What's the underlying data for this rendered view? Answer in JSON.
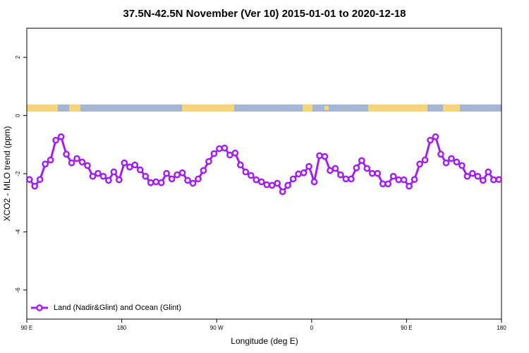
{
  "chart_data": {
    "type": "line",
    "title": "37.5N-42.5N November (Ver 10)   2015-01-01 to 2020-12-18",
    "x_label": "Longitude (deg E)",
    "y_label": "XCO2 - MLO trend (ppm)",
    "xlim": [
      90,
      540
    ],
    "xticks": [
      {
        "value": 90,
        "label": "90 E"
      },
      {
        "value": 180,
        "label": "180"
      },
      {
        "value": 270,
        "label": "90 W"
      },
      {
        "value": 360,
        "label": "0"
      },
      {
        "value": 450,
        "label": "90 E"
      },
      {
        "value": 540,
        "label": "180"
      }
    ],
    "ylim": [
      -7,
      3
    ],
    "yticks": [
      -6,
      -4,
      -2,
      0,
      2
    ],
    "legend": "bottom-left",
    "x": [
      92.5,
      97.5,
      102.5,
      107.5,
      112.5,
      117.5,
      122.5,
      127.5,
      132.5,
      137.5,
      142.5,
      147.5,
      152.5,
      157.5,
      162.5,
      167.5,
      172.5,
      177.5,
      182.5,
      187.5,
      192.5,
      197.5,
      202.5,
      207.5,
      212.5,
      217.5,
      222.5,
      227.5,
      232.5,
      237.5,
      242.5,
      247.5,
      252.5,
      257.5,
      262.5,
      267.5,
      272.5,
      277.5,
      282.5,
      287.5,
      292.5,
      297.5,
      302.5,
      307.5,
      312.5,
      317.5,
      322.5,
      327.5,
      332.5,
      337.5,
      342.5,
      347.5,
      352.5,
      357.5,
      362.5,
      367.5,
      372.5,
      377.5,
      382.5,
      387.5,
      392.5,
      397.5,
      402.5,
      407.5,
      412.5,
      417.5,
      422.5,
      427.5,
      432.5,
      437.5,
      442.5,
      447.5,
      452.5,
      457.5,
      462.5,
      467.5,
      472.5,
      477.5,
      482.5,
      487.5,
      492.5,
      497.5,
      502.5,
      507.5,
      512.5,
      517.5,
      522.5,
      527.5,
      532.5,
      537.5
    ],
    "series": [
      {
        "name": "Land (Nadir&Glint) and Ocean (Glint)",
        "color": "#a020f0",
        "values": [
          -2.2,
          -2.43,
          -2.2,
          -1.67,
          -1.53,
          -0.85,
          -0.73,
          -1.33,
          -1.63,
          -1.48,
          -1.6,
          -1.72,
          -2.09,
          -1.99,
          -2.09,
          -2.23,
          -1.94,
          -2.21,
          -1.63,
          -1.77,
          -1.7,
          -1.87,
          -2.09,
          -2.31,
          -2.28,
          -2.31,
          -1.99,
          -2.18,
          -2.04,
          -1.97,
          -2.23,
          -2.33,
          -2.18,
          -1.89,
          -1.58,
          -1.31,
          -1.14,
          -1.12,
          -1.36,
          -1.29,
          -1.7,
          -1.94,
          -2.06,
          -2.21,
          -2.28,
          -2.38,
          -2.4,
          -2.33,
          -2.62,
          -2.4,
          -2.18,
          -2.01,
          -1.97,
          -1.75,
          -2.28,
          -1.38,
          -1.41,
          -1.89,
          -1.82,
          -2.04,
          -2.18,
          -2.18,
          -1.8,
          -1.55,
          -1.82,
          -1.99,
          -1.99,
          -2.35,
          -2.35,
          -2.09,
          -2.21,
          -2.21,
          -2.43,
          -2.2,
          -1.67,
          -1.53,
          -0.85,
          -0.73,
          -1.33,
          -1.63,
          -1.48,
          -1.6,
          -1.72,
          -2.09,
          -1.99,
          -2.09,
          -2.23,
          -1.94,
          -2.21,
          -2.2
        ]
      }
    ]
  }
}
